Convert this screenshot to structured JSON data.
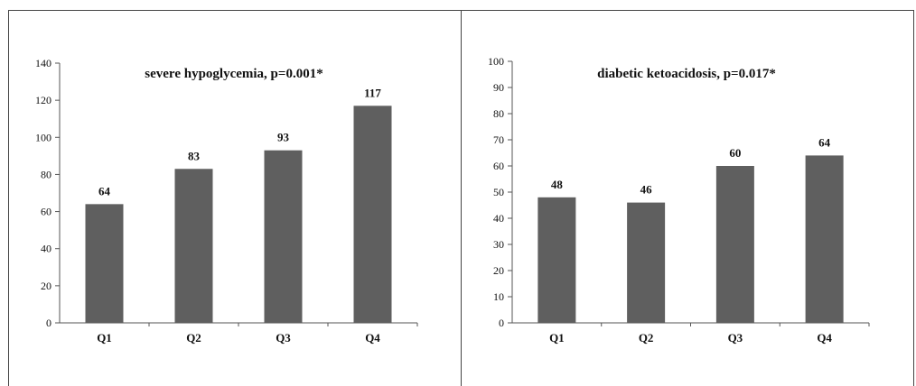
{
  "chart_data": [
    {
      "type": "bar",
      "title": "severe hypoglycemia, p=0.001*",
      "xlabel": "",
      "ylabel": "",
      "categories": [
        "Q1",
        "Q2",
        "Q3",
        "Q4"
      ],
      "values": [
        64,
        83,
        93,
        117
      ],
      "data_labels": [
        "64",
        "83",
        "93",
        "117"
      ],
      "ylim": [
        0,
        140
      ],
      "yticks": [
        0,
        20,
        40,
        60,
        80,
        100,
        120,
        140
      ],
      "ytick_labels": [
        "0",
        "20",
        "40",
        "60",
        "80",
        "100",
        "120",
        "140"
      ],
      "grid": false,
      "legend": "none",
      "bar_color": "#5f5f5f"
    },
    {
      "type": "bar",
      "title": "diabetic ketoacidosis, p=0.017*",
      "xlabel": "",
      "ylabel": "",
      "categories": [
        "Q1",
        "Q2",
        "Q3",
        "Q4"
      ],
      "values": [
        48,
        46,
        60,
        64
      ],
      "data_labels": [
        "48",
        "46",
        "60",
        "64"
      ],
      "ylim": [
        0,
        100
      ],
      "yticks": [
        0,
        10,
        20,
        30,
        40,
        50,
        60,
        70,
        80,
        90,
        100
      ],
      "ytick_labels": [
        "0",
        "10",
        "20",
        "30",
        "40",
        "50",
        "60",
        "70",
        "80",
        "90",
        "100"
      ],
      "grid": false,
      "legend": "none",
      "bar_color": "#5f5f5f"
    }
  ]
}
